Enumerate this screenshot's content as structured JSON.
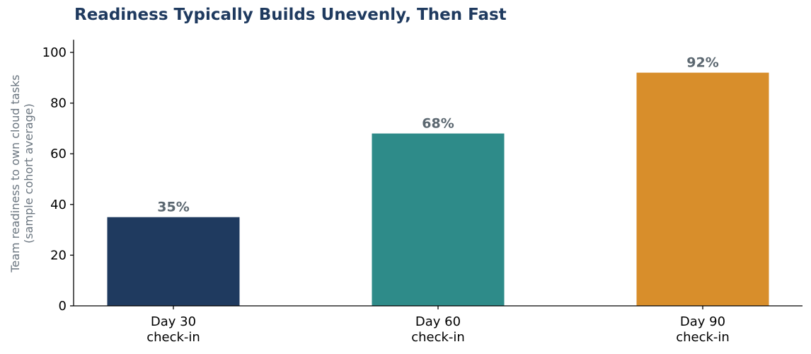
{
  "chart_data": {
    "type": "bar",
    "title": "Readiness Typically Builds Unevenly, Then Fast",
    "categories": [
      [
        "Day 30",
        "check-in"
      ],
      [
        "Day 60",
        "check-in"
      ],
      [
        "Day 90",
        "check-in"
      ]
    ],
    "values": [
      35,
      68,
      92
    ],
    "value_labels": [
      "35%",
      "68%",
      "92%"
    ],
    "bar_colors": [
      "#1f3a5f",
      "#2e8b89",
      "#d88e2b"
    ],
    "ylabel_lines": [
      "Team readiness to own cloud tasks",
      "(sample cohort average)"
    ],
    "ylim": [
      0,
      105
    ],
    "yticks": [
      0,
      20,
      40,
      60,
      80,
      100
    ],
    "grid": false,
    "legend": "none",
    "colors": {
      "title": "#1f3a5f",
      "value_label": "#5b6770",
      "axis_title": "#6b7680",
      "axis": "#000000"
    }
  }
}
